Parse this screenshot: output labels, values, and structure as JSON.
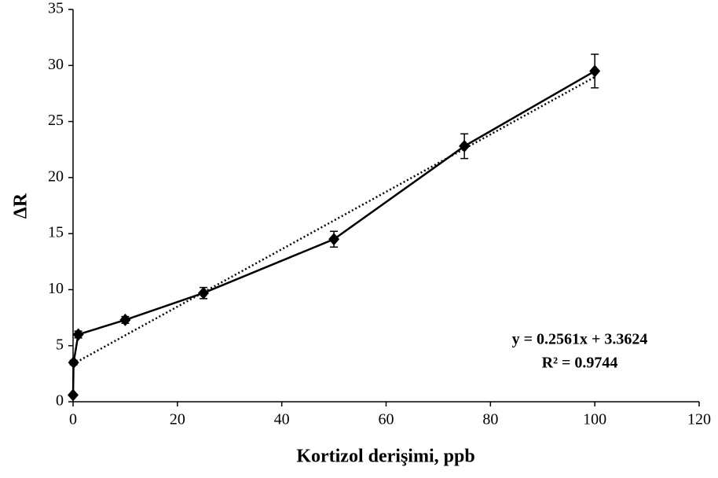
{
  "chart_data": {
    "type": "line",
    "xlabel": "Kortizol derişimi, ppb",
    "ylabel": "ΔR",
    "x": [
      0,
      0.1,
      1,
      10,
      25,
      50,
      75,
      100
    ],
    "values": [
      0.6,
      3.5,
      6.0,
      7.3,
      9.7,
      14.5,
      22.8,
      29.5
    ],
    "errors": [
      0.1,
      0.2,
      0.3,
      0.3,
      0.5,
      0.7,
      1.1,
      1.5
    ],
    "color": "#000000",
    "xlim": [
      0,
      120
    ],
    "xticks": [
      0,
      20,
      40,
      60,
      80,
      100,
      120
    ],
    "ylim": [
      0,
      35
    ],
    "yticks": [
      0,
      5,
      10,
      15,
      20,
      25,
      30,
      35
    ],
    "grid": false,
    "trendline": {
      "slope": 0.2561,
      "intercept": 3.3624,
      "equation": "y = 0.2561x + 3.3624",
      "r2": "R² = 0.9744"
    }
  }
}
